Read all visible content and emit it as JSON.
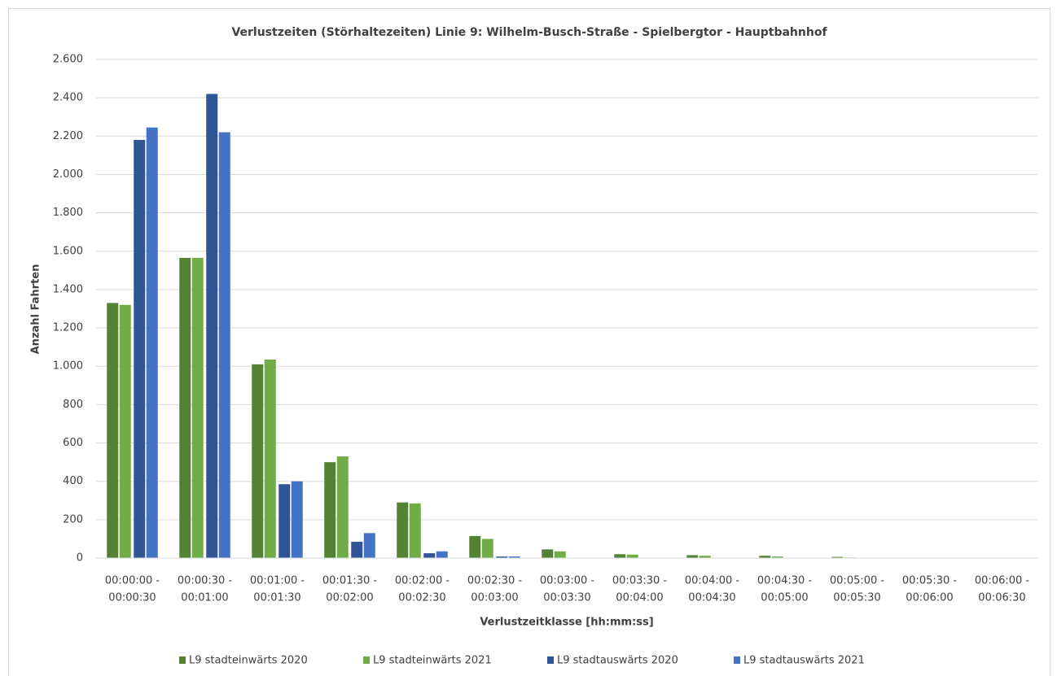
{
  "chart_data": {
    "type": "bar",
    "title": "Verlustzeiten (Störhaltezeiten) Linie 9: Wilhelm-Busch-Straße - Spielbergtor - Hauptbahnhof",
    "x_label": "Verlustzeitklasse [hh:mm:ss]",
    "y_label": "Anzahl Fahrten",
    "categories": [
      [
        "00:00:00 -",
        "00:00:30"
      ],
      [
        "00:00:30 -",
        "00:01:00"
      ],
      [
        "00:01:00 -",
        "00:01:30"
      ],
      [
        "00:01:30 -",
        "00:02:00"
      ],
      [
        "00:02:00 -",
        "00:02:30"
      ],
      [
        "00:02:30 -",
        "00:03:00"
      ],
      [
        "00:03:00 -",
        "00:03:30"
      ],
      [
        "00:03:30 -",
        "00:04:00"
      ],
      [
        "00:04:00 -",
        "00:04:30"
      ],
      [
        "00:04:30 -",
        "00:05:00"
      ],
      [
        "00:05:00 -",
        "00:05:30"
      ],
      [
        "00:05:30 -",
        "00:06:00"
      ],
      [
        "00:06:00 -",
        "00:06:30"
      ]
    ],
    "series": [
      {
        "name": "L9 stadteinwärts 2020",
        "color": "#548235",
        "values": [
          1330,
          1565,
          1010,
          500,
          290,
          115,
          45,
          20,
          15,
          12,
          6,
          1,
          0
        ]
      },
      {
        "name": "L9 stadteinwärts 2021",
        "color": "#70ad47",
        "values": [
          1320,
          1565,
          1035,
          530,
          285,
          100,
          35,
          18,
          12,
          8,
          3,
          1,
          0
        ]
      },
      {
        "name": "L9 stadtauswärts 2020",
        "color": "#2f5597",
        "values": [
          2180,
          2420,
          385,
          85,
          25,
          8,
          2,
          0,
          0,
          0,
          0,
          0,
          0
        ]
      },
      {
        "name": "L9 stadtauswärts 2021",
        "color": "#4472c4",
        "values": [
          2245,
          2220,
          400,
          130,
          35,
          8,
          2,
          0,
          0,
          0,
          0,
          0,
          0
        ]
      }
    ],
    "ylim": [
      0,
      2600
    ],
    "yticks": [
      0,
      200,
      400,
      600,
      800,
      {
        "value": 1000,
        "label": "1.000"
      },
      {
        "value": 1200,
        "label": "1.200"
      },
      {
        "value": 1400,
        "label": "1.400"
      },
      {
        "value": 1600,
        "label": "1.600"
      },
      {
        "value": 1800,
        "label": "1.800"
      },
      {
        "value": 2000,
        "label": "2.000"
      },
      {
        "value": 2200,
        "label": "2.200"
      },
      {
        "value": 2400,
        "label": "2.400"
      },
      {
        "value": 2600,
        "label": "2.600"
      }
    ],
    "grid": true,
    "legend": "bottom"
  }
}
